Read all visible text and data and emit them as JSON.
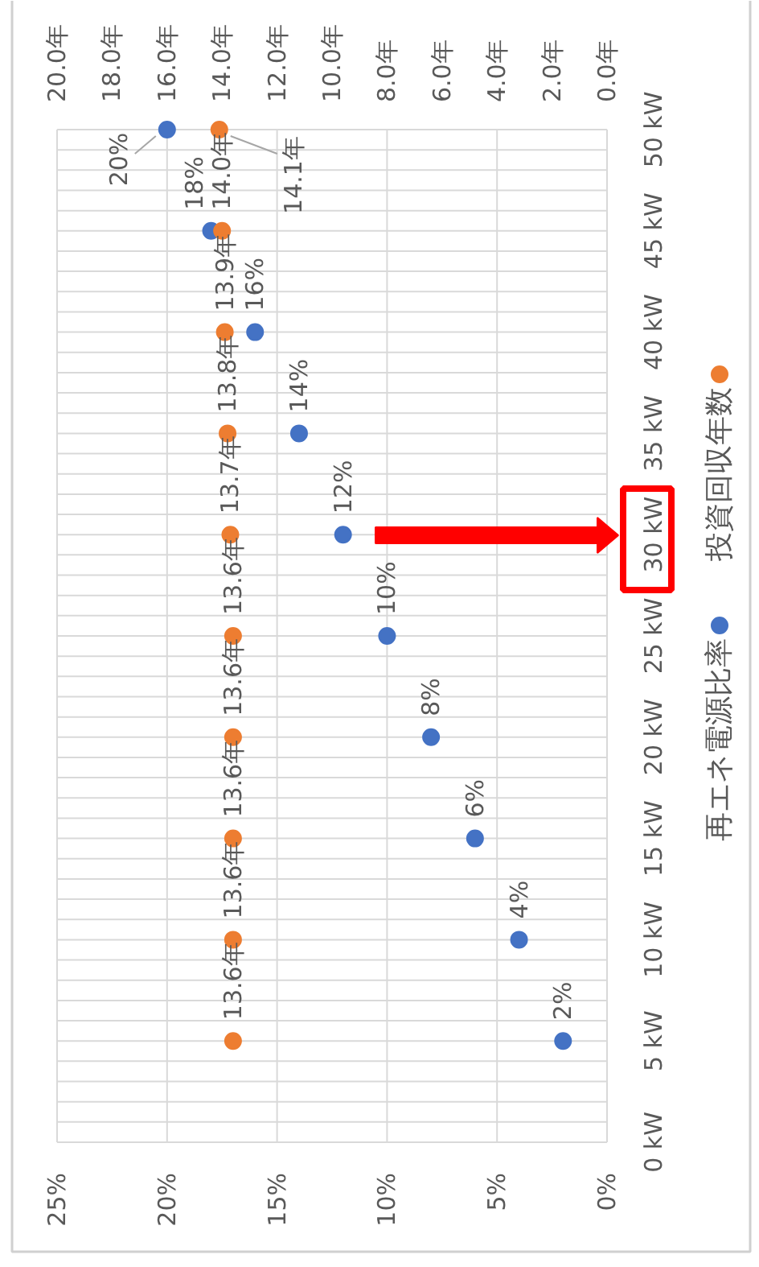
{
  "chart_data": {
    "type": "scatter",
    "orientation": "horizontal",
    "marker": "circle",
    "grid": true,
    "legend": "right",
    "x": [
      5,
      10,
      15,
      20,
      25,
      30,
      35,
      40,
      45,
      50
    ],
    "series": [
      {
        "name": "再エネ電源比率",
        "color": "#4472c4",
        "values": [
          2,
          4,
          6,
          8,
          10,
          12,
          14,
          16,
          18,
          20
        ],
        "value_labels": [
          "2%",
          "4%",
          "6%",
          "8%",
          "10%",
          "12%",
          "14%",
          "16%",
          "18%",
          "20%"
        ]
      },
      {
        "name": "投資回収年数",
        "color": "#ed7d31",
        "axis": "x2",
        "values": [
          13.6,
          13.6,
          13.6,
          13.6,
          13.6,
          13.7,
          13.8,
          13.9,
          14.0,
          14.1
        ],
        "value_labels": [
          "13.6年",
          "13.6年",
          "13.6年",
          "13.6年",
          "13.6年",
          "13.7年",
          "13.8年",
          "13.9年",
          "14.0年",
          "14.1年"
        ]
      }
    ],
    "xlim": [
      25,
      0
    ],
    "xticks": [
      {
        "value": 25,
        "label": "25%"
      },
      {
        "value": 20,
        "label": "20%"
      },
      {
        "value": 15,
        "label": "15%"
      },
      {
        "value": 10,
        "label": "10%"
      },
      {
        "value": 5,
        "label": "5%"
      },
      {
        "value": 0,
        "label": "0%"
      }
    ],
    "x2lim": [
      20,
      0
    ],
    "x2ticks": [
      {
        "value": 20,
        "label": "20.0年"
      },
      {
        "value": 18,
        "label": "18.0年"
      },
      {
        "value": 16,
        "label": "16.0年"
      },
      {
        "value": 14,
        "label": "14.0年"
      },
      {
        "value": 12,
        "label": "12.0年"
      },
      {
        "value": 10,
        "label": "10.0年"
      },
      {
        "value": 8,
        "label": "8.0年"
      },
      {
        "value": 6,
        "label": "6.0年"
      },
      {
        "value": 4,
        "label": "4.0年"
      },
      {
        "value": 2,
        "label": "2.0年"
      },
      {
        "value": 0,
        "label": "0.0年"
      }
    ],
    "ylim": [
      0,
      50
    ],
    "yticks": [
      {
        "value": 0,
        "label": "0 kW"
      },
      {
        "value": 1,
        "label": null
      },
      {
        "value": 2,
        "label": null
      },
      {
        "value": 3,
        "label": null
      },
      {
        "value": 4,
        "label": null
      },
      {
        "value": 5,
        "label": "5 kW"
      },
      {
        "value": 6,
        "label": null
      },
      {
        "value": 7,
        "label": null
      },
      {
        "value": 8,
        "label": null
      },
      {
        "value": 9,
        "label": null
      },
      {
        "value": 10,
        "label": "10 kW"
      },
      {
        "value": 11,
        "label": null
      },
      {
        "value": 12,
        "label": null
      },
      {
        "value": 13,
        "label": null
      },
      {
        "value": 14,
        "label": null
      },
      {
        "value": 15,
        "label": "15 kW"
      },
      {
        "value": 16,
        "label": null
      },
      {
        "value": 17,
        "label": null
      },
      {
        "value": 18,
        "label": null
      },
      {
        "value": 19,
        "label": null
      },
      {
        "value": 20,
        "label": "20 kW"
      },
      {
        "value": 21,
        "label": null
      },
      {
        "value": 22,
        "label": null
      },
      {
        "value": 23,
        "label": null
      },
      {
        "value": 24,
        "label": null
      },
      {
        "value": 25,
        "label": "25 kW"
      },
      {
        "value": 26,
        "label": null
      },
      {
        "value": 27,
        "label": null
      },
      {
        "value": 28,
        "label": null
      },
      {
        "value": 29,
        "label": null
      },
      {
        "value": 30,
        "label": "30 kW"
      },
      {
        "value": 31,
        "label": null
      },
      {
        "value": 32,
        "label": null
      },
      {
        "value": 33,
        "label": null
      },
      {
        "value": 34,
        "label": null
      },
      {
        "value": 35,
        "label": "35 kW"
      },
      {
        "value": 36,
        "label": null
      },
      {
        "value": 37,
        "label": null
      },
      {
        "value": 38,
        "label": null
      },
      {
        "value": 39,
        "label": null
      },
      {
        "value": 40,
        "label": "40 kW"
      },
      {
        "value": 41,
        "label": null
      },
      {
        "value": 42,
        "label": null
      },
      {
        "value": 43,
        "label": null
      },
      {
        "value": 44,
        "label": null
      },
      {
        "value": 45,
        "label": "45 kW"
      },
      {
        "value": 46,
        "label": null
      },
      {
        "value": 47,
        "label": null
      },
      {
        "value": 48,
        "label": null
      },
      {
        "value": 49,
        "label": null
      },
      {
        "value": 50,
        "label": "50 kW"
      }
    ]
  }
}
